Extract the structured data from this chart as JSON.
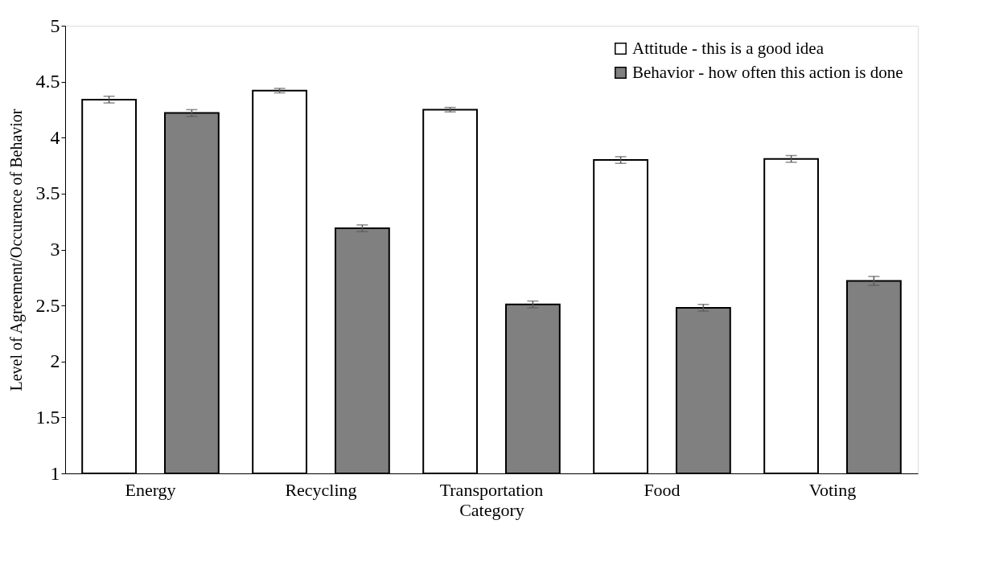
{
  "chart_data": {
    "type": "bar",
    "xlabel": "Category",
    "ylabel": "Level of Agreement/Occurence of Behavior",
    "categories": [
      "Energy",
      "Recycling",
      "Transportation",
      "Food",
      "Voting"
    ],
    "series": [
      {
        "name": "Attitude - this is a good idea",
        "color": "#ffffff",
        "values": [
          4.34,
          4.42,
          4.25,
          3.8,
          3.81
        ],
        "errors": [
          0.03,
          0.02,
          0.02,
          0.03,
          0.03
        ]
      },
      {
        "name": "Behavior - how often this action is done",
        "color": "#808080",
        "values": [
          4.22,
          3.19,
          2.51,
          2.48,
          2.72
        ],
        "errors": [
          0.03,
          0.03,
          0.03,
          0.03,
          0.04
        ]
      }
    ],
    "ylim": [
      1,
      5
    ],
    "yticks": [
      1,
      1.5,
      2,
      2.5,
      3,
      3.5,
      4,
      4.5,
      5
    ],
    "grid": false,
    "legend": "top right"
  }
}
